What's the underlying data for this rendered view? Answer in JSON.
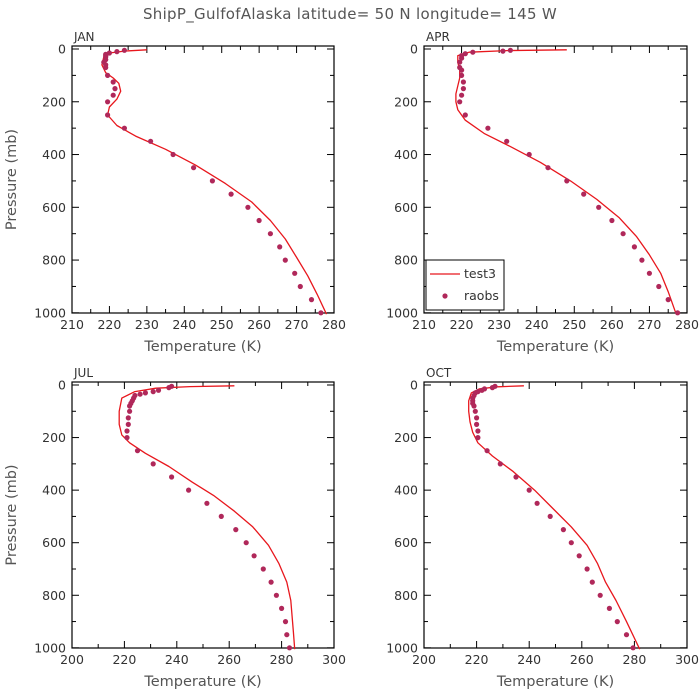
{
  "figure": {
    "title": "ShipP_GulfofAlaska   latitude= 50 N longitude= 145 W",
    "style": {
      "model_color": "#e8171d",
      "obs_color": "#b0285a",
      "frame_color": "#000000"
    }
  },
  "chart_data": [
    {
      "type": "line",
      "panel_label": "JAN",
      "xlabel": "Temperature (K)",
      "ylabel": "Pressure (mb)",
      "xlim": [
        210,
        280
      ],
      "ylim": [
        0,
        1020
      ],
      "y_inverted": true,
      "xticks": [
        210,
        220,
        230,
        240,
        250,
        260,
        270,
        280
      ],
      "yticks": [
        0,
        200,
        400,
        600,
        800,
        1000
      ],
      "series": [
        {
          "name": "test3",
          "style": "line",
          "points": [
            [
              230,
              3
            ],
            [
              224,
              8
            ],
            [
              220,
              15
            ],
            [
              218.5,
              30
            ],
            [
              218,
              60
            ],
            [
              219,
              90
            ],
            [
              221,
              110
            ],
            [
              222.5,
              130
            ],
            [
              223,
              160
            ],
            [
              222,
              190
            ],
            [
              220,
              220
            ],
            [
              219.5,
              250
            ],
            [
              222,
              290
            ],
            [
              227,
              330
            ],
            [
              235,
              380
            ],
            [
              243,
              440
            ],
            [
              251,
              510
            ],
            [
              258,
              580
            ],
            [
              263,
              650
            ],
            [
              267,
              720
            ],
            [
              270,
              790
            ],
            [
              273,
              860
            ],
            [
              275.5,
              930
            ],
            [
              278,
              1005
            ]
          ]
        },
        {
          "name": "raobs",
          "style": "dots",
          "points": [
            [
              224,
              5
            ],
            [
              222,
              10
            ],
            [
              220,
              15
            ],
            [
              219,
              20
            ],
            [
              219,
              25
            ],
            [
              219,
              30
            ],
            [
              219,
              40
            ],
            [
              218.5,
              50
            ],
            [
              219,
              60
            ],
            [
              219,
              70
            ],
            [
              219.5,
              100
            ],
            [
              221,
              125
            ],
            [
              221.5,
              150
            ],
            [
              221,
              175
            ],
            [
              219.5,
              200
            ],
            [
              219.5,
              250
            ],
            [
              224,
              300
            ],
            [
              231,
              350
            ],
            [
              237,
              400
            ],
            [
              242.5,
              450
            ],
            [
              247.5,
              500
            ],
            [
              252.5,
              550
            ],
            [
              257,
              600
            ],
            [
              260,
              650
            ],
            [
              263,
              700
            ],
            [
              265.5,
              750
            ],
            [
              267,
              800
            ],
            [
              269.5,
              850
            ],
            [
              271,
              900
            ],
            [
              274,
              950
            ],
            [
              276.5,
              1000
            ]
          ]
        }
      ]
    },
    {
      "type": "line",
      "panel_label": "APR",
      "xlabel": "Temperature (K)",
      "ylabel": "",
      "xlim": [
        210,
        280
      ],
      "ylim": [
        0,
        1020
      ],
      "y_inverted": true,
      "xticks": [
        210,
        220,
        230,
        240,
        250,
        260,
        270,
        280
      ],
      "yticks": [
        0,
        200,
        400,
        600,
        800,
        1000
      ],
      "legend": {
        "placement": "bottom-left",
        "entries": [
          "test3",
          "raobs"
        ]
      },
      "series": [
        {
          "name": "test3",
          "style": "line",
          "points": [
            [
              248,
              3
            ],
            [
              232,
              6
            ],
            [
              222,
              12
            ],
            [
              219,
              25
            ],
            [
              219,
              50
            ],
            [
              219.5,
              80
            ],
            [
              219.5,
              110
            ],
            [
              219,
              140
            ],
            [
              218.5,
              170
            ],
            [
              218.5,
              200
            ],
            [
              219,
              230
            ],
            [
              221,
              270
            ],
            [
              226,
              320
            ],
            [
              233,
              370
            ],
            [
              241,
              430
            ],
            [
              249,
              500
            ],
            [
              256,
              570
            ],
            [
              262,
              640
            ],
            [
              266.5,
              710
            ],
            [
              270,
              780
            ],
            [
              273,
              850
            ],
            [
              275,
              920
            ],
            [
              277,
              1000
            ]
          ]
        },
        {
          "name": "raobs",
          "style": "dots",
          "points": [
            [
              233,
              5
            ],
            [
              231,
              8
            ],
            [
              223,
              12
            ],
            [
              221,
              18
            ],
            [
              220,
              25
            ],
            [
              220,
              35
            ],
            [
              219.5,
              50
            ],
            [
              219.5,
              70
            ],
            [
              220,
              80
            ],
            [
              220,
              100
            ],
            [
              220.5,
              125
            ],
            [
              220.5,
              150
            ],
            [
              220,
              175
            ],
            [
              219.5,
              200
            ],
            [
              221,
              250
            ],
            [
              227,
              300
            ],
            [
              232,
              350
            ],
            [
              238,
              400
            ],
            [
              243,
              450
            ],
            [
              248,
              500
            ],
            [
              252.5,
              550
            ],
            [
              256.5,
              600
            ],
            [
              260,
              650
            ],
            [
              263,
              700
            ],
            [
              266,
              750
            ],
            [
              268,
              800
            ],
            [
              270,
              850
            ],
            [
              272.5,
              900
            ],
            [
              275,
              950
            ],
            [
              277.5,
              1000
            ]
          ]
        }
      ]
    },
    {
      "type": "line",
      "panel_label": "JUL",
      "xlabel": "Temperature (K)",
      "ylabel": "Pressure (mb)",
      "xlim": [
        200,
        300
      ],
      "ylim": [
        0,
        1020
      ],
      "y_inverted": true,
      "xticks": [
        200,
        220,
        240,
        260,
        280,
        300
      ],
      "yticks": [
        0,
        200,
        400,
        600,
        800,
        1000
      ],
      "series": [
        {
          "name": "test3",
          "style": "line",
          "points": [
            [
              262,
              3
            ],
            [
              245,
              6
            ],
            [
              232,
              12
            ],
            [
              224,
              25
            ],
            [
              219,
              50
            ],
            [
              218,
              100
            ],
            [
              218,
              150
            ],
            [
              219,
              190
            ],
            [
              222,
              220
            ],
            [
              228,
              260
            ],
            [
              237,
              310
            ],
            [
              246,
              370
            ],
            [
              254,
              420
            ],
            [
              262,
              480
            ],
            [
              269,
              540
            ],
            [
              275,
              610
            ],
            [
              279,
              680
            ],
            [
              282,
              750
            ],
            [
              283.5,
              820
            ],
            [
              284,
              880
            ],
            [
              284.5,
              940
            ],
            [
              285,
              1005
            ]
          ]
        },
        {
          "name": "raobs",
          "style": "dots",
          "points": [
            [
              238,
              5
            ],
            [
              237,
              10
            ],
            [
              233,
              20
            ],
            [
              231,
              25
            ],
            [
              228,
              30
            ],
            [
              226,
              35
            ],
            [
              224,
              40
            ],
            [
              223.5,
              50
            ],
            [
              223,
              60
            ],
            [
              222.5,
              70
            ],
            [
              222,
              80
            ],
            [
              222,
              100
            ],
            [
              221.5,
              125
            ],
            [
              221.5,
              150
            ],
            [
              221,
              175
            ],
            [
              221,
              200
            ],
            [
              225,
              250
            ],
            [
              231,
              300
            ],
            [
              238,
              350
            ],
            [
              244.5,
              400
            ],
            [
              251.5,
              450
            ],
            [
              257,
              500
            ],
            [
              262.5,
              550
            ],
            [
              266.5,
              600
            ],
            [
              269.5,
              650
            ],
            [
              273,
              700
            ],
            [
              276,
              750
            ],
            [
              278,
              800
            ],
            [
              280,
              850
            ],
            [
              281.5,
              900
            ],
            [
              282,
              950
            ],
            [
              283,
              1000
            ]
          ]
        }
      ]
    },
    {
      "type": "line",
      "panel_label": "OCT",
      "xlabel": "Temperature (K)",
      "ylabel": "",
      "xlim": [
        200,
        300
      ],
      "ylim": [
        0,
        1020
      ],
      "y_inverted": true,
      "xticks": [
        200,
        220,
        240,
        260,
        280,
        300
      ],
      "yticks": [
        0,
        200,
        400,
        600,
        800,
        1000
      ],
      "series": [
        {
          "name": "test3",
          "style": "line",
          "points": [
            [
              238,
              3
            ],
            [
              228,
              7
            ],
            [
              221,
              15
            ],
            [
              218,
              30
            ],
            [
              217,
              60
            ],
            [
              217,
              100
            ],
            [
              217.5,
              140
            ],
            [
              218.5,
              180
            ],
            [
              220.5,
              220
            ],
            [
              226,
              270
            ],
            [
              234,
              330
            ],
            [
              242,
              400
            ],
            [
              249,
              470
            ],
            [
              256,
              540
            ],
            [
              262,
              610
            ],
            [
              266,
              680
            ],
            [
              269,
              750
            ],
            [
              273,
              820
            ],
            [
              277,
              900
            ],
            [
              282,
              1005
            ]
          ]
        },
        {
          "name": "raobs",
          "style": "dots",
          "points": [
            [
              227,
              5
            ],
            [
              226,
              10
            ],
            [
              223,
              15
            ],
            [
              222,
              20
            ],
            [
              220.5,
              25
            ],
            [
              219.5,
              30
            ],
            [
              219,
              40
            ],
            [
              218.5,
              50
            ],
            [
              218.5,
              60
            ],
            [
              218.5,
              70
            ],
            [
              219,
              80
            ],
            [
              219.5,
              100
            ],
            [
              220,
              125
            ],
            [
              220,
              150
            ],
            [
              220.5,
              175
            ],
            [
              220.5,
              200
            ],
            [
              224,
              250
            ],
            [
              229,
              300
            ],
            [
              235,
              350
            ],
            [
              240,
              400
            ],
            [
              243,
              450
            ],
            [
              248,
              500
            ],
            [
              253,
              550
            ],
            [
              256,
              600
            ],
            [
              259,
              650
            ],
            [
              262,
              700
            ],
            [
              264,
              750
            ],
            [
              267,
              800
            ],
            [
              270.5,
              850
            ],
            [
              273.5,
              900
            ],
            [
              277,
              950
            ],
            [
              279.5,
              1000
            ]
          ]
        }
      ]
    }
  ]
}
